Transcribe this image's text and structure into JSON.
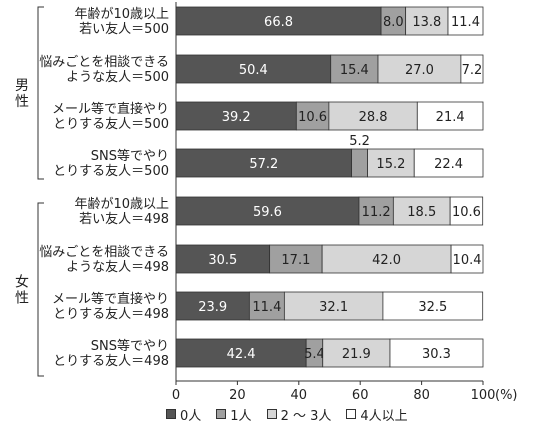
{
  "chart_data": {
    "type": "bar",
    "orientation": "horizontal",
    "stacked": true,
    "groups": [
      {
        "label": "男性",
        "categories": [
          [
            "年齢が10歳以上",
            "若い友人＝500"
          ],
          [
            "悩みごとを相談できる",
            "ような友人＝500"
          ],
          [
            "メール等で直接やり",
            "とりする友人＝500"
          ],
          [
            "SNS等でやり",
            "とりする友人＝500"
          ]
        ],
        "values": [
          [
            66.8,
            8.0,
            13.8,
            11.4
          ],
          [
            50.4,
            15.4,
            27.0,
            7.2
          ],
          [
            39.2,
            10.6,
            28.8,
            21.4
          ],
          [
            57.2,
            5.2,
            15.2,
            22.4
          ]
        ],
        "value_labels": [
          [
            "66.8",
            "8.0",
            "13.8",
            "11.4"
          ],
          [
            "50.4",
            "15.4",
            "27.0",
            "7.2"
          ],
          [
            "39.2",
            "10.6",
            "28.8",
            "21.4"
          ],
          [
            "57.2",
            "5.2",
            "15.2",
            "22.4"
          ]
        ]
      },
      {
        "label": "女性",
        "categories": [
          [
            "年齢が10歳以上",
            "若い友人＝498"
          ],
          [
            "悩みごとを相談できる",
            "ような友人＝498"
          ],
          [
            "メール等で直接やり",
            "とりする友人＝498"
          ],
          [
            "SNS等でやり",
            "とりする友人＝498"
          ]
        ],
        "values": [
          [
            59.6,
            11.2,
            18.5,
            10.6
          ],
          [
            30.5,
            17.1,
            42.0,
            10.4
          ],
          [
            23.9,
            11.4,
            32.1,
            32.5
          ],
          [
            42.4,
            5.4,
            21.9,
            30.3
          ]
        ],
        "value_labels": [
          [
            "59.6",
            "11.2",
            "18.5",
            "10.6"
          ],
          [
            "30.5",
            "17.1",
            "42.0",
            "10.4"
          ],
          [
            "23.9",
            "11.4",
            "32.1",
            "32.5"
          ],
          [
            "42.4",
            "5.4",
            "21.9",
            "30.3"
          ]
        ]
      }
    ],
    "series": [
      {
        "name": "0人",
        "color": "#555555"
      },
      {
        "name": "1人",
        "color": "#a0a0a0"
      },
      {
        "name": "2 ～ 3人",
        "color": "#d6d6d6"
      },
      {
        "name": "4人以上",
        "color": "#ffffff"
      }
    ],
    "x_ticks": [
      "0",
      "20",
      "40",
      "60",
      "80",
      "100"
    ],
    "x_unit": "(%)",
    "xlim": [
      0,
      100
    ],
    "legend_position": "bottom"
  },
  "legend": {
    "items": [
      {
        "label": "0人",
        "color": "#555555"
      },
      {
        "label": "1人",
        "color": "#a0a0a0"
      },
      {
        "label": "2 ～ 3人",
        "color": "#d6d6d6"
      },
      {
        "label": "4人以上",
        "color": "#ffffff"
      }
    ]
  }
}
